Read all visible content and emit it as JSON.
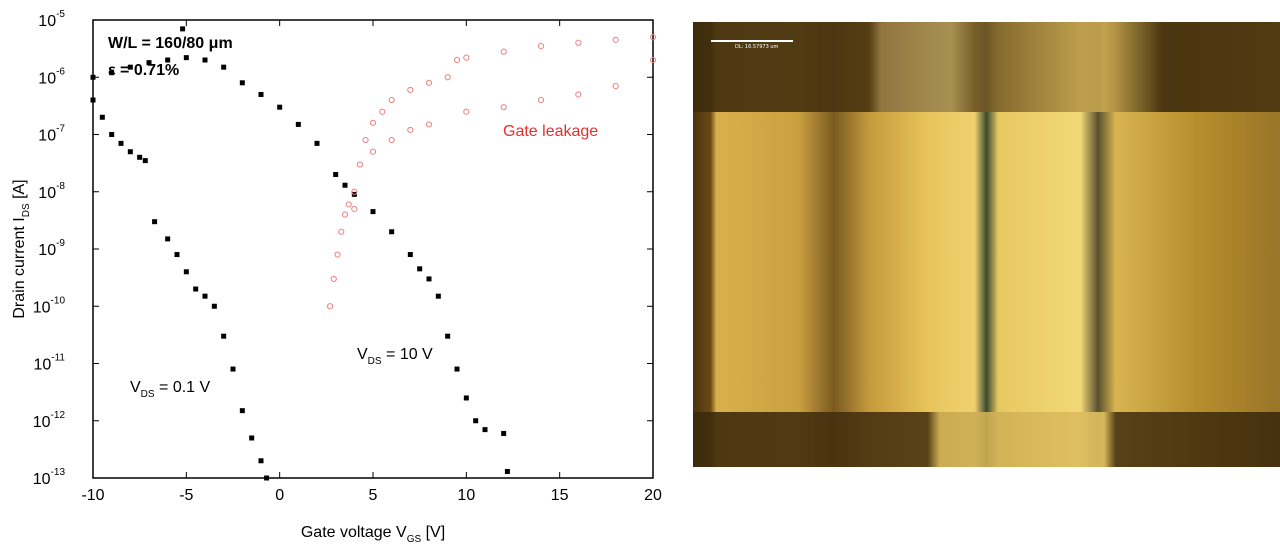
{
  "chart_data": {
    "type": "scatter",
    "x_label": {
      "text": "Gate voltage V",
      "sub": "GS",
      "rest": " [V]"
    },
    "y_label": {
      "text": "Drain current I",
      "sub": "DS",
      "rest": " [A]"
    },
    "log_y": true,
    "xlim": [
      -10,
      20
    ],
    "xticks": [
      -10,
      -5,
      0,
      5,
      10,
      15,
      20
    ],
    "ylim": [
      1e-13,
      1e-05
    ],
    "yticks": [
      {
        "value": 1e-13,
        "label": "10",
        "exponent": "-13"
      },
      {
        "value": 1e-12,
        "label": "10",
        "exponent": "-12"
      },
      {
        "value": 1e-11,
        "label": "10",
        "exponent": "-11"
      },
      {
        "value": 1e-10,
        "label": "10",
        "exponent": "-10"
      },
      {
        "value": 1e-09,
        "label": "10",
        "exponent": "-9"
      },
      {
        "value": 1e-08,
        "label": "10",
        "exponent": "-8"
      },
      {
        "value": 1e-07,
        "label": "10",
        "exponent": "-7"
      },
      {
        "value": 1e-06,
        "label": "10",
        "exponent": "-6"
      },
      {
        "value": 1e-05,
        "label": "10",
        "exponent": "-5"
      }
    ],
    "annotations": [
      {
        "text": "W/L = 160/80 μm"
      },
      {
        "text": "ε = 0.71%"
      },
      {
        "text": "Gate leakage"
      },
      {
        "text": "V",
        "sub": "DS",
        "rest": " = 10 V"
      },
      {
        "text": "V",
        "sub": "DS",
        "rest": " = 0.1 V"
      }
    ],
    "series": [
      {
        "color": "#000000",
        "marker": "square",
        "x": [
          -10,
          -9.5,
          -9,
          -8.5,
          -8,
          -7.5,
          -7.2,
          -6.7,
          -6,
          -5.5,
          -5,
          -4.5,
          -4,
          -3.5,
          -3,
          -2.5,
          -2,
          -1.5,
          -1,
          -0.7
        ],
        "values": [
          4e-07,
          2e-07,
          1e-07,
          7e-08,
          5e-08,
          4e-08,
          3.5e-08,
          3e-09,
          1.5e-09,
          8e-10,
          4e-10,
          2e-10,
          1.5e-10,
          1e-10,
          3e-11,
          8e-12,
          1.5e-12,
          5e-13,
          2e-13,
          1e-13
        ]
      },
      {
        "color": "#000000",
        "marker": "square",
        "x": [
          -10,
          -9,
          -8,
          -7,
          -6,
          -5,
          -4,
          -3,
          -2,
          -1,
          0,
          1,
          2,
          3,
          3.5,
          4,
          5,
          6,
          7,
          7.5,
          8,
          8.5,
          9,
          9.5,
          10,
          10.5,
          11,
          12,
          -5.2,
          12.2
        ],
        "values": [
          1e-06,
          1.2e-06,
          1.5e-06,
          1.8e-06,
          2e-06,
          2.2e-06,
          2e-06,
          1.5e-06,
          8e-07,
          5e-07,
          3e-07,
          1.5e-07,
          7e-08,
          2e-08,
          1.3e-08,
          9e-09,
          4.5e-09,
          2e-09,
          8e-10,
          4.5e-10,
          3e-10,
          1.5e-10,
          3e-11,
          8e-12,
          2.5e-12,
          1e-12,
          7e-13,
          6e-13,
          7e-06,
          1.3e-13
        ]
      },
      {
        "color": "#f08080",
        "marker": "circle",
        "x": [
          2.7,
          2.9,
          3.1,
          3.3,
          3.5,
          3.7,
          4,
          4.3,
          4.6,
          5,
          5.5,
          6,
          7,
          8,
          9,
          9.5,
          10,
          12,
          14,
          16,
          18,
          20,
          4,
          5,
          6,
          7,
          8,
          10,
          12,
          14,
          16,
          18,
          20
        ],
        "values": [
          1e-10,
          3e-10,
          8e-10,
          2e-09,
          4e-09,
          6e-09,
          1e-08,
          3e-08,
          8e-08,
          1.6e-07,
          2.5e-07,
          4e-07,
          6e-07,
          8e-07,
          1e-06,
          2e-06,
          2.2e-06,
          2.8e-06,
          3.5e-06,
          4e-06,
          4.5e-06,
          5e-06,
          5e-09,
          5e-08,
          8e-08,
          1.2e-07,
          1.5e-07,
          2.5e-07,
          3e-07,
          4e-07,
          5e-07,
          7e-07,
          2e-06
        ]
      }
    ]
  },
  "image": {
    "scale_label": "DL: 16.57973 um"
  }
}
